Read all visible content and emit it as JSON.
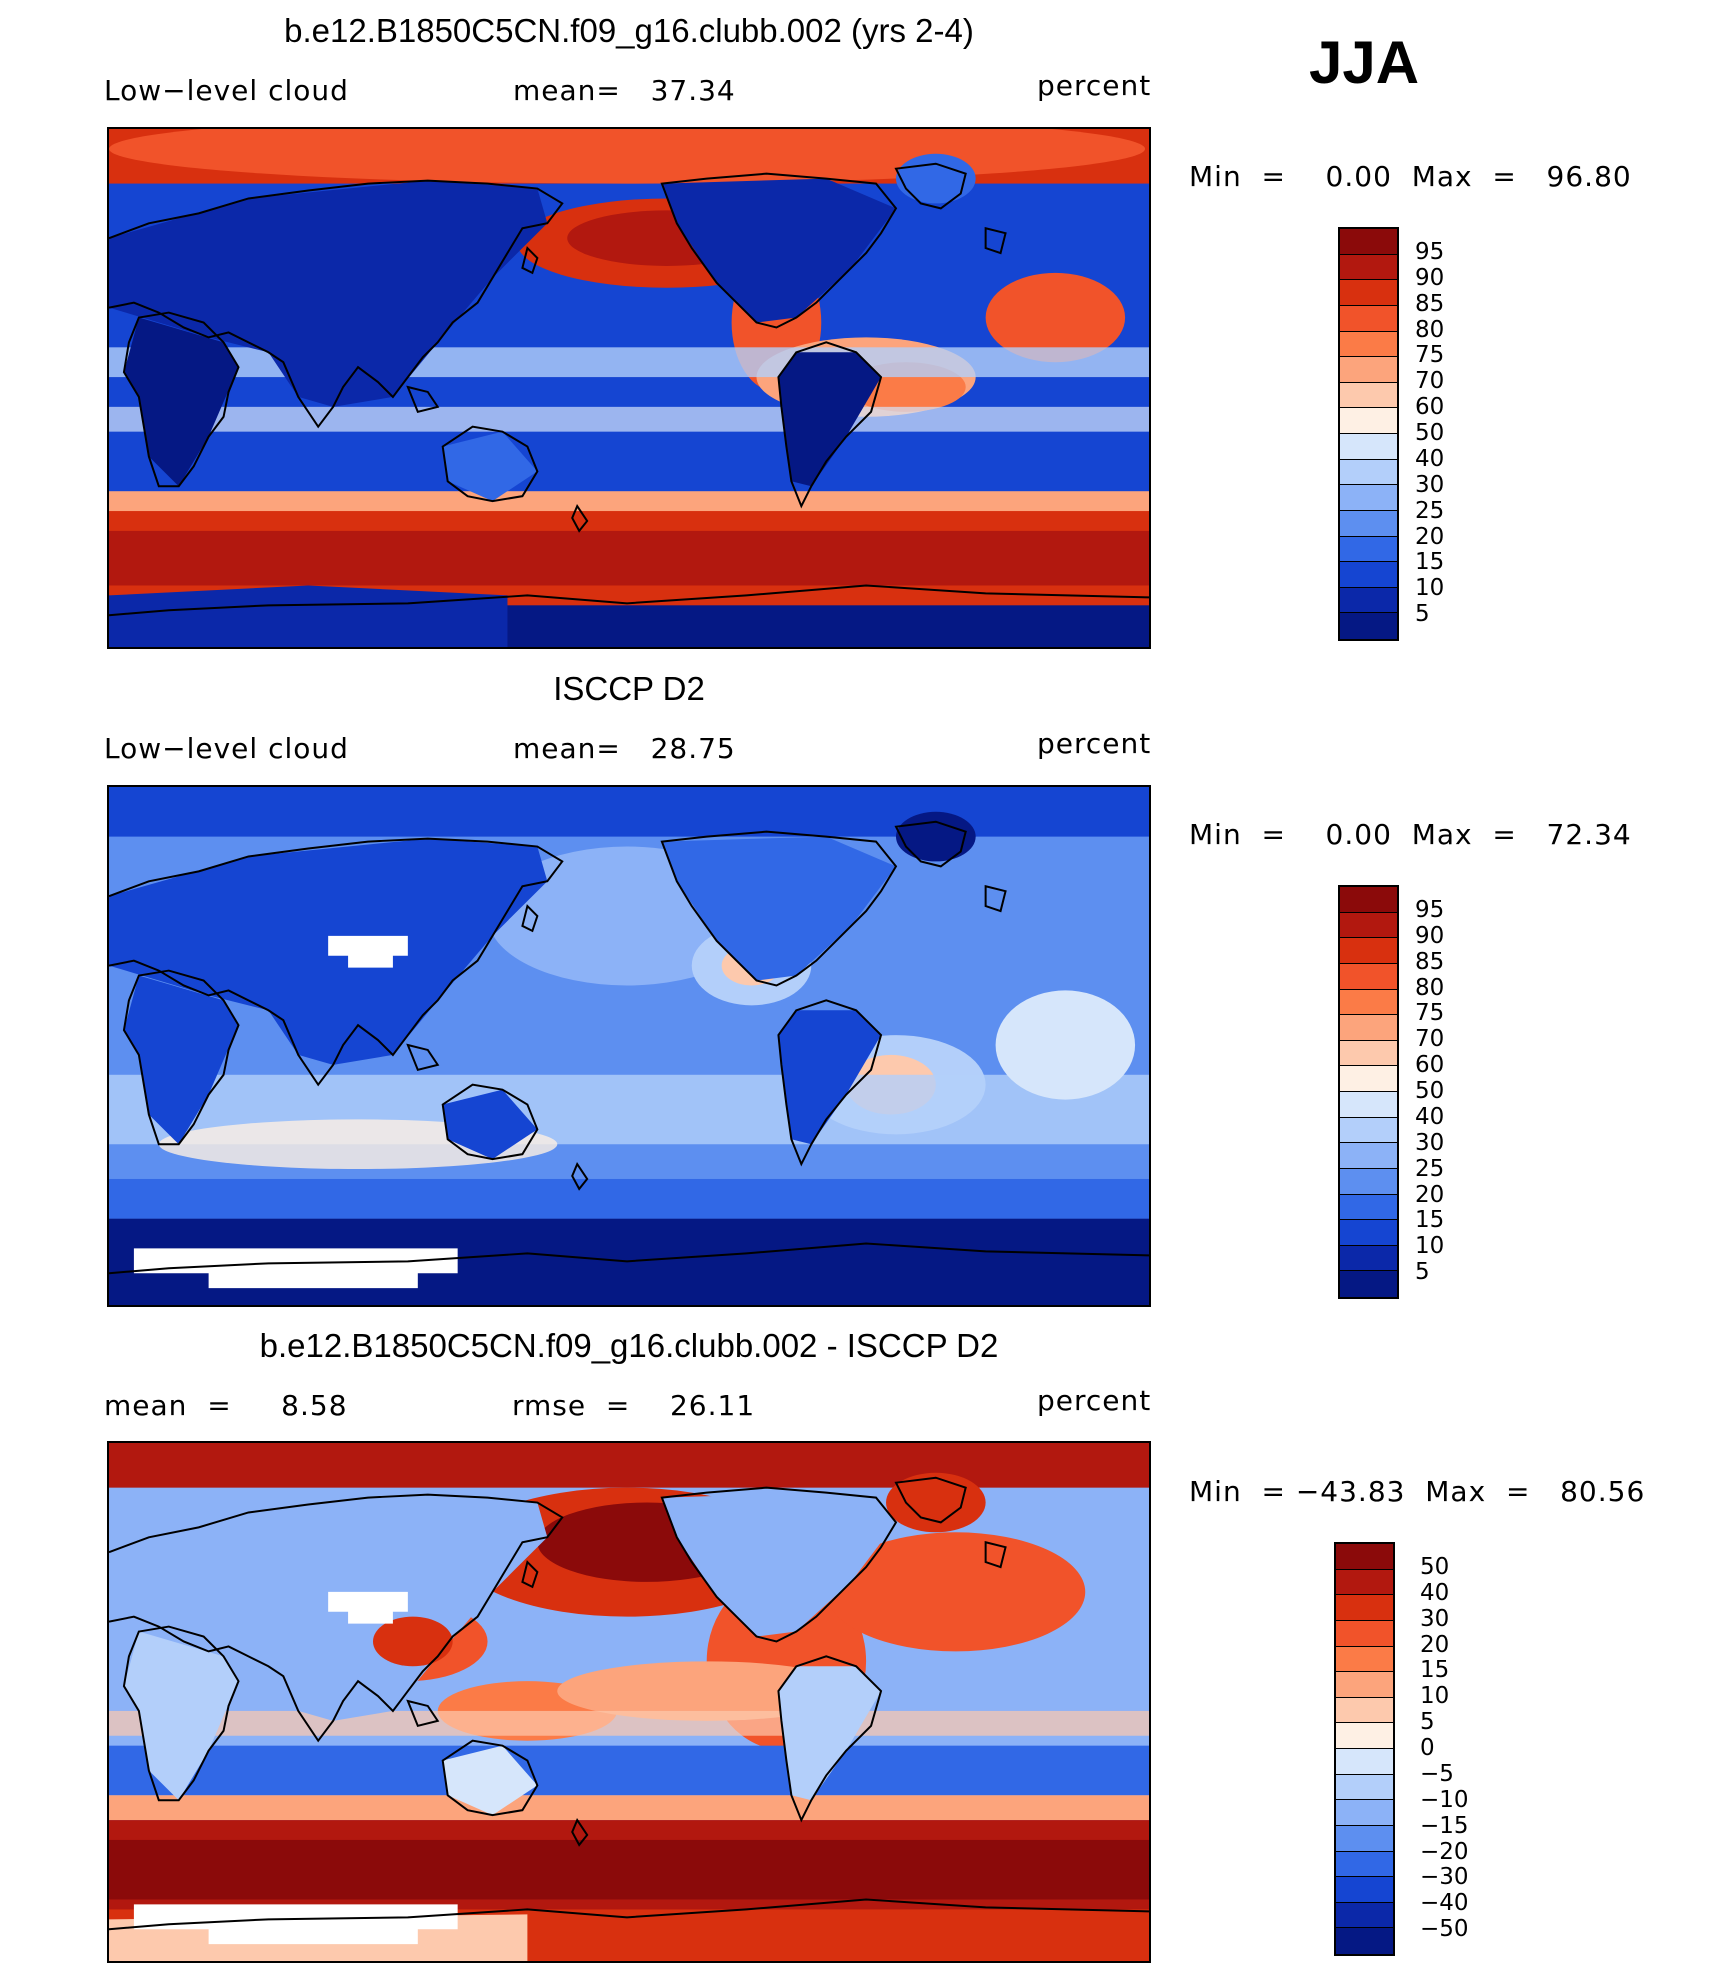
{
  "season": "JJA",
  "panels": [
    {
      "title": "b.e12.B1850C5CN.f09_g16.clubb.002 (yrs 2-4)",
      "left": "Low−level cloud",
      "mid": "mean=   37.34",
      "right": "percent",
      "minmax": "Min  =    0.00  Max  =   96.80",
      "map_style": "model",
      "colorbar": {
        "colors": [
          "#8b0a0a",
          "#b2180f",
          "#d8300f",
          "#f1532a",
          "#fb7b47",
          "#fca47c",
          "#fdc9ad",
          "#fef0e4",
          "#d6e6fb",
          "#b3cffa",
          "#8cb2f7",
          "#5d8ff0",
          "#3168e6",
          "#1545d2",
          "#0b28a9",
          "#051884"
        ],
        "labels": [
          "95",
          "90",
          "85",
          "80",
          "75",
          "70",
          "60",
          "50",
          "40",
          "30",
          "25",
          "20",
          "15",
          "10",
          "5"
        ]
      }
    },
    {
      "title": "ISCCP D2",
      "left": "Low−level cloud",
      "mid": "mean=   28.75",
      "right": "percent",
      "minmax": "Min  =    0.00  Max  =   72.34",
      "map_style": "obs",
      "colorbar": {
        "colors": [
          "#8b0a0a",
          "#b2180f",
          "#d8300f",
          "#f1532a",
          "#fb7b47",
          "#fca47c",
          "#fdc9ad",
          "#fef0e4",
          "#d6e6fb",
          "#b3cffa",
          "#8cb2f7",
          "#5d8ff0",
          "#3168e6",
          "#1545d2",
          "#0b28a9",
          "#051884"
        ],
        "labels": [
          "95",
          "90",
          "85",
          "80",
          "75",
          "70",
          "60",
          "50",
          "40",
          "30",
          "25",
          "20",
          "15",
          "10",
          "5"
        ]
      }
    },
    {
      "title": "b.e12.B1850C5CN.f09_g16.clubb.002 - ISCCP D2",
      "left": "mean  =     8.58",
      "mid": "rmse  =    26.11",
      "right": "percent",
      "minmax": "Min  = −43.83  Max  =   80.56",
      "map_style": "diff",
      "colorbar": {
        "colors": [
          "#8b0a0a",
          "#b2180f",
          "#d8300f",
          "#f1532a",
          "#fb7b47",
          "#fca47c",
          "#fdc9ad",
          "#fef0e4",
          "#d6e6fb",
          "#b3cffa",
          "#8cb2f7",
          "#5d8ff0",
          "#3168e6",
          "#1545d2",
          "#0b28a9",
          "#051884"
        ],
        "labels": [
          "50",
          "40",
          "30",
          "20",
          "15",
          "10",
          "5",
          "0",
          "−5",
          "−10",
          "−15",
          "−20",
          "−30",
          "−40",
          "−50"
        ]
      }
    }
  ]
}
